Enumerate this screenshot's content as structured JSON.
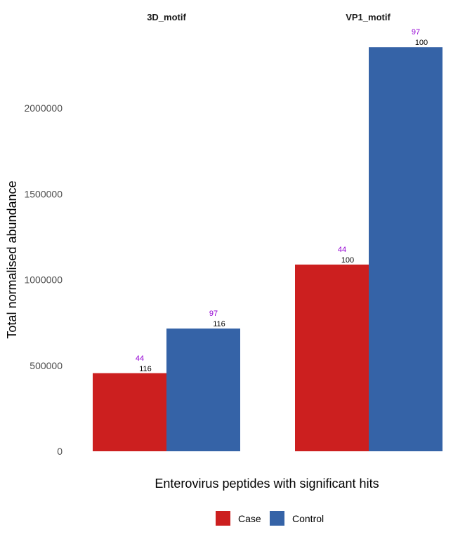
{
  "chart_data": {
    "type": "bar",
    "ylabel": "Total normalised abundance",
    "xlabel": "Enterovirus peptides with significant hits",
    "ylim": [
      0,
      2400000
    ],
    "yticks": [
      0,
      500000,
      1000000,
      1500000,
      2000000
    ],
    "ytick_labels": [
      "0",
      "500000",
      "1000000",
      "1500000",
      "2000000"
    ],
    "grid": false,
    "legend_position": "bottom",
    "series_colors": {
      "Case": "#cc1f1f",
      "Control": "#3563a7"
    },
    "label_colors": {
      "upper": "#9400d3",
      "lower": "#000000"
    },
    "legend": [
      {
        "name": "Case",
        "color": "#cc1f1f"
      },
      {
        "name": "Control",
        "color": "#3563a7"
      }
    ],
    "facets": [
      {
        "title": "3D_motif",
        "bars": [
          {
            "series": "Case",
            "value": 455000,
            "upper_label": "44",
            "lower_label": "116"
          },
          {
            "series": "Control",
            "value": 715000,
            "upper_label": "97",
            "lower_label": "116"
          }
        ]
      },
      {
        "title": "VP1_motif",
        "bars": [
          {
            "series": "Case",
            "value": 1088000,
            "upper_label": "44",
            "lower_label": "100"
          },
          {
            "series": "Control",
            "value": 2355000,
            "upper_label": "97",
            "lower_label": "100"
          }
        ]
      }
    ]
  }
}
